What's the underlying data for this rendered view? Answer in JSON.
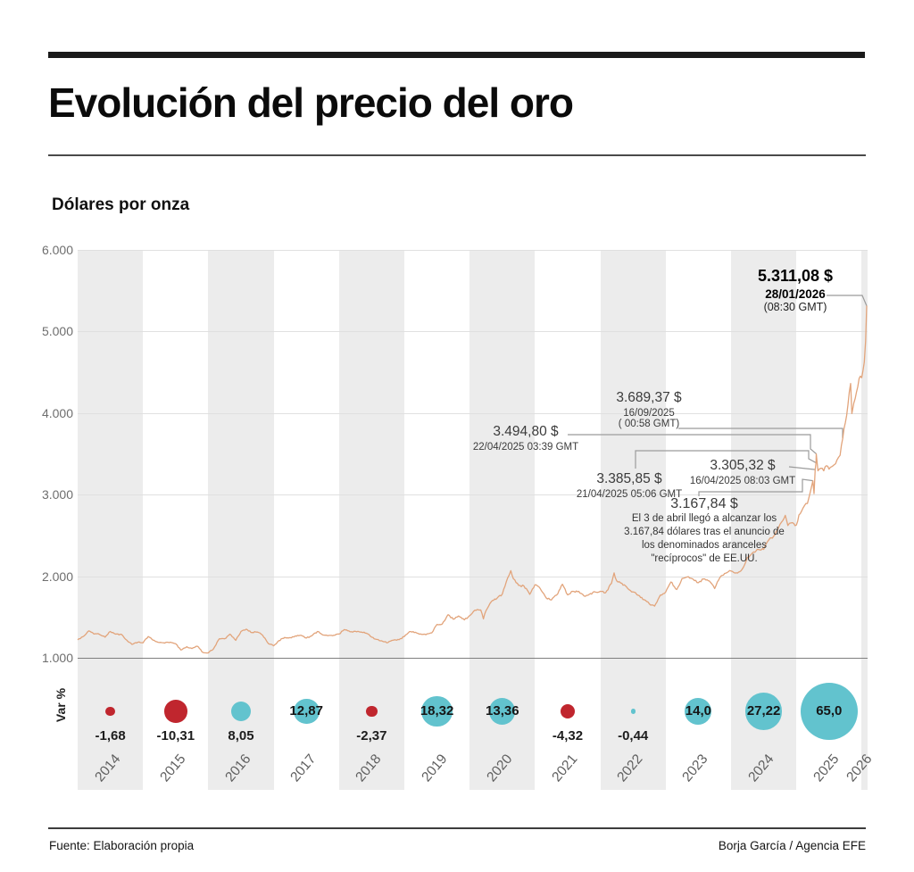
{
  "header": {
    "title": "Evolución del precio del oro",
    "subtitle": "Dólares por onza"
  },
  "footer": {
    "source": "Fuente: Elaboración propia",
    "credit": "Borja García / Agencia EFE"
  },
  "colors": {
    "line": "#e2a47b",
    "positive_bubble": "#62c3ce",
    "negative_bubble": "#c0262e",
    "band": "#ececec",
    "grid": "#e0e0e0",
    "baseline": "#7e7e7e",
    "connector": "#9b9b9b"
  },
  "chart_data": {
    "type": "line",
    "title": "Evolución del precio del oro",
    "ylabel": "Dólares por onza",
    "ylim": [
      1000,
      6000
    ],
    "y_ticks": [
      "6.000",
      "5.000",
      "4.000",
      "3.000",
      "2.000",
      "1.000"
    ],
    "y_tick_values": [
      6000,
      5000,
      4000,
      3000,
      2000,
      1000
    ],
    "x_years": [
      "2014",
      "2015",
      "2016",
      "2017",
      "2018",
      "2019",
      "2020",
      "2021",
      "2022",
      "2023",
      "2024",
      "2025",
      "2026"
    ],
    "series": [
      {
        "name": "Precio del oro (dólares por onza)",
        "points": [
          [
            2014.0,
            1220
          ],
          [
            2014.08,
            1258
          ],
          [
            2014.17,
            1330
          ],
          [
            2014.25,
            1291
          ],
          [
            2014.33,
            1289
          ],
          [
            2014.42,
            1253
          ],
          [
            2014.5,
            1322
          ],
          [
            2014.58,
            1290
          ],
          [
            2014.67,
            1287
          ],
          [
            2014.75,
            1217
          ],
          [
            2014.83,
            1164
          ],
          [
            2014.92,
            1190
          ],
          [
            2015.0,
            1184
          ],
          [
            2015.08,
            1260
          ],
          [
            2015.17,
            1214
          ],
          [
            2015.25,
            1187
          ],
          [
            2015.33,
            1180
          ],
          [
            2015.42,
            1191
          ],
          [
            2015.5,
            1172
          ],
          [
            2015.58,
            1095
          ],
          [
            2015.67,
            1135
          ],
          [
            2015.75,
            1114
          ],
          [
            2015.83,
            1142
          ],
          [
            2015.92,
            1065
          ],
          [
            2016.0,
            1060
          ],
          [
            2016.08,
            1112
          ],
          [
            2016.17,
            1234
          ],
          [
            2016.25,
            1233
          ],
          [
            2016.33,
            1290
          ],
          [
            2016.42,
            1214
          ],
          [
            2016.5,
            1322
          ],
          [
            2016.58,
            1351
          ],
          [
            2016.67,
            1309
          ],
          [
            2016.75,
            1316
          ],
          [
            2016.83,
            1277
          ],
          [
            2016.92,
            1174
          ],
          [
            2017.0,
            1146
          ],
          [
            2017.08,
            1211
          ],
          [
            2017.17,
            1249
          ],
          [
            2017.25,
            1247
          ],
          [
            2017.33,
            1268
          ],
          [
            2017.42,
            1275
          ],
          [
            2017.5,
            1242
          ],
          [
            2017.58,
            1268
          ],
          [
            2017.67,
            1322
          ],
          [
            2017.75,
            1280
          ],
          [
            2017.83,
            1271
          ],
          [
            2017.92,
            1275
          ],
          [
            2018.0,
            1291
          ],
          [
            2018.08,
            1345
          ],
          [
            2018.17,
            1318
          ],
          [
            2018.25,
            1325
          ],
          [
            2018.33,
            1315
          ],
          [
            2018.42,
            1301
          ],
          [
            2018.5,
            1253
          ],
          [
            2018.58,
            1224
          ],
          [
            2018.67,
            1201
          ],
          [
            2018.75,
            1187
          ],
          [
            2018.83,
            1215
          ],
          [
            2018.92,
            1222
          ],
          [
            2019.0,
            1260
          ],
          [
            2019.08,
            1321
          ],
          [
            2019.17,
            1313
          ],
          [
            2019.25,
            1292
          ],
          [
            2019.33,
            1283
          ],
          [
            2019.42,
            1305
          ],
          [
            2019.5,
            1409
          ],
          [
            2019.58,
            1414
          ],
          [
            2019.67,
            1528
          ],
          [
            2019.75,
            1472
          ],
          [
            2019.83,
            1511
          ],
          [
            2019.92,
            1464
          ],
          [
            2020.0,
            1517
          ],
          [
            2020.08,
            1584
          ],
          [
            2020.17,
            1586
          ],
          [
            2020.21,
            1477
          ],
          [
            2020.25,
            1577
          ],
          [
            2020.33,
            1686
          ],
          [
            2020.42,
            1730
          ],
          [
            2020.5,
            1781
          ],
          [
            2020.58,
            1976
          ],
          [
            2020.63,
            2067
          ],
          [
            2020.67,
            1967
          ],
          [
            2020.75,
            1886
          ],
          [
            2020.83,
            1879
          ],
          [
            2020.92,
            1777
          ],
          [
            2021.0,
            1895
          ],
          [
            2021.08,
            1847
          ],
          [
            2021.17,
            1734
          ],
          [
            2021.25,
            1708
          ],
          [
            2021.33,
            1768
          ],
          [
            2021.42,
            1900
          ],
          [
            2021.5,
            1770
          ],
          [
            2021.58,
            1814
          ],
          [
            2021.67,
            1814
          ],
          [
            2021.75,
            1757
          ],
          [
            2021.83,
            1777
          ],
          [
            2021.92,
            1805
          ],
          [
            2022.0,
            1814
          ],
          [
            2022.08,
            1797
          ],
          [
            2022.17,
            1909
          ],
          [
            2022.21,
            2039
          ],
          [
            2022.25,
            1942
          ],
          [
            2022.33,
            1911
          ],
          [
            2022.42,
            1848
          ],
          [
            2022.5,
            1807
          ],
          [
            2022.58,
            1765
          ],
          [
            2022.67,
            1711
          ],
          [
            2022.75,
            1660
          ],
          [
            2022.83,
            1633
          ],
          [
            2022.92,
            1768
          ],
          [
            2023.0,
            1806
          ],
          [
            2023.08,
            1928
          ],
          [
            2023.17,
            1836
          ],
          [
            2023.25,
            1969
          ],
          [
            2023.33,
            1990
          ],
          [
            2023.42,
            1963
          ],
          [
            2023.5,
            1919
          ],
          [
            2023.58,
            1965
          ],
          [
            2023.67,
            1940
          ],
          [
            2023.75,
            1848
          ],
          [
            2023.83,
            1984
          ],
          [
            2023.92,
            2036
          ],
          [
            2024.0,
            2063
          ],
          [
            2024.08,
            2040
          ],
          [
            2024.17,
            2083
          ],
          [
            2024.25,
            2230
          ],
          [
            2024.33,
            2286
          ],
          [
            2024.42,
            2327
          ],
          [
            2024.5,
            2327
          ],
          [
            2024.58,
            2446
          ],
          [
            2024.67,
            2503
          ],
          [
            2024.75,
            2635
          ],
          [
            2024.83,
            2744
          ],
          [
            2024.87,
            2620
          ],
          [
            2024.92,
            2651
          ],
          [
            2025.0,
            2625
          ],
          [
            2025.04,
            2750
          ],
          [
            2025.08,
            2797
          ],
          [
            2025.12,
            2858
          ],
          [
            2025.17,
            2890
          ],
          [
            2025.21,
            3020
          ],
          [
            2025.24,
            3124
          ],
          [
            2025.253,
            3168
          ],
          [
            2025.27,
            3010
          ],
          [
            2025.288,
            3305
          ],
          [
            2025.3,
            3386
          ],
          [
            2025.305,
            3495
          ],
          [
            2025.33,
            3290
          ],
          [
            2025.37,
            3320
          ],
          [
            2025.42,
            3290
          ],
          [
            2025.46,
            3352
          ],
          [
            2025.5,
            3310
          ],
          [
            2025.54,
            3340
          ],
          [
            2025.58,
            3365
          ],
          [
            2025.62,
            3420
          ],
          [
            2025.67,
            3480
          ],
          [
            2025.71,
            3689
          ],
          [
            2025.75,
            3880
          ],
          [
            2025.79,
            4100
          ],
          [
            2025.83,
            4360
          ],
          [
            2025.85,
            3990
          ],
          [
            2025.88,
            4120
          ],
          [
            2025.92,
            4250
          ],
          [
            2025.96,
            4420
          ],
          [
            2026.0,
            4430
          ],
          [
            2026.02,
            4520
          ],
          [
            2026.04,
            4620
          ],
          [
            2026.06,
            4880
          ],
          [
            2026.077,
            5311
          ]
        ]
      }
    ],
    "annotations": [
      {
        "id": "a5311",
        "price_label": "5.311,08 $",
        "date_label": "28/01/2026",
        "time_label": "(08:30 GMT)",
        "price": 5311.08,
        "date": "28/01/2026",
        "emphasis": true
      },
      {
        "id": "a3689",
        "price_label": "3.689,37 $",
        "date_label": "16/09/2025",
        "time_label": "( 00:58 GMT)",
        "price": 3689.37,
        "date": "16/09/2025"
      },
      {
        "id": "a3494",
        "price_label": "3.494,80 $",
        "date_label": "22/04/2025 03:39 GMT",
        "price": 3494.8,
        "date": "22/04/2025"
      },
      {
        "id": "a3385",
        "price_label": "3.385,85 $",
        "date_label": "21/04/2025 05:06 GMT",
        "price": 3385.85,
        "date": "21/04/2025"
      },
      {
        "id": "a3305",
        "price_label": "3.305,32 $",
        "date_label": "16/04/2025 08:03 GMT",
        "price": 3305.32,
        "date": "16/04/2025"
      },
      {
        "id": "a3167",
        "price_label": "3.167,84 $",
        "price": 3167.84,
        "date": "03/04/2025",
        "note_lines": [
          "El 3 de abril llegó a alcanzar los",
          "3.167,84 dólares tras el anuncio de",
          "los denominados aranceles",
          "\"recíprocos\" de EE.UU."
        ]
      }
    ],
    "bubbles": {
      "row_label": "Var %",
      "items": [
        {
          "year": "2014",
          "label": "-1,68",
          "value": -1.68,
          "color": "negative",
          "label_position": "below"
        },
        {
          "year": "2015",
          "label": "-10,31",
          "value": -10.31,
          "color": "negative",
          "label_position": "below"
        },
        {
          "year": "2016",
          "label": "8,05",
          "value": 8.05,
          "color": "positive",
          "label_position": "below"
        },
        {
          "year": "2017",
          "label": "12,87",
          "value": 12.87,
          "color": "positive",
          "label_position": "inside"
        },
        {
          "year": "2018",
          "label": "-2,37",
          "value": -2.37,
          "color": "negative",
          "label_position": "below"
        },
        {
          "year": "2019",
          "label": "18,32",
          "value": 18.32,
          "color": "positive",
          "label_position": "inside"
        },
        {
          "year": "2020",
          "label": "13,36",
          "value": 13.36,
          "color": "positive",
          "label_position": "inside"
        },
        {
          "year": "2021",
          "label": "-4,32",
          "value": -4.32,
          "color": "negative",
          "label_position": "below"
        },
        {
          "year": "2022",
          "label": "-0,44",
          "value": -0.44,
          "color": "positive",
          "label_position": "below"
        },
        {
          "year": "2023",
          "label": "14,0",
          "value": 14.0,
          "color": "positive",
          "label_position": "inside"
        },
        {
          "year": "2024",
          "label": "27,22",
          "value": 27.22,
          "color": "positive",
          "label_position": "inside"
        },
        {
          "year": "2025",
          "label": "65,0",
          "value": 65.0,
          "color": "positive",
          "label_position": "inside"
        },
        {
          "year": "2026",
          "label": null,
          "value": null,
          "color": null,
          "label_position": null
        }
      ]
    }
  }
}
